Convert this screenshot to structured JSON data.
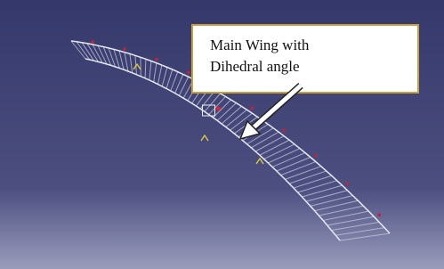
{
  "callout": {
    "lines": [
      "Main Wing with",
      "Dihedral angle"
    ]
  }
}
